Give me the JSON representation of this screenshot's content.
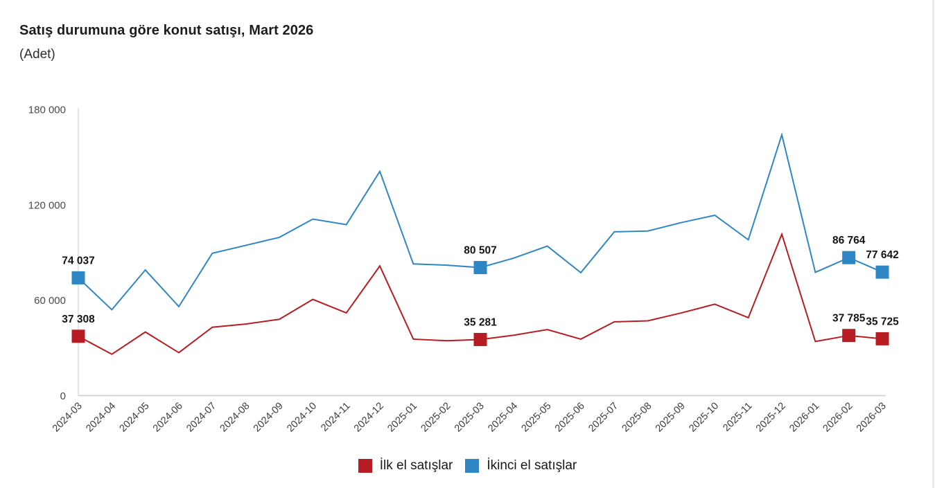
{
  "chart_data": {
    "type": "line",
    "title": "Satış durumuna göre konut satışı, Mart 2026",
    "subtitle": "(Adet)",
    "x": [
      "2024-03",
      "2024-04",
      "2024-05",
      "2024-06",
      "2024-07",
      "2024-08",
      "2024-09",
      "2024-10",
      "2024-11",
      "2024-12",
      "2025-01",
      "2025-02",
      "2025-03",
      "2025-04",
      "2025-05",
      "2025-06",
      "2025-07",
      "2025-08",
      "2025-09",
      "2025-10",
      "2025-11",
      "2025-12",
      "2026-01",
      "2026-02",
      "2026-03"
    ],
    "series": [
      {
        "name": "İlk el satışlar",
        "color": "#b71c22",
        "values": [
          37308,
          26000,
          40000,
          27000,
          43000,
          45000,
          48000,
          60500,
          52000,
          81500,
          35500,
          34500,
          35281,
          38000,
          41500,
          35500,
          46400,
          47000,
          52000,
          57500,
          49000,
          101500,
          34000,
          37785,
          35725
        ],
        "labeled_points": {
          "0": "37 308",
          "12": "35 281",
          "23": "37 785",
          "24": "35 725"
        }
      },
      {
        "name": "İkinci el satışlar",
        "color": "#2e86c5",
        "values": [
          74037,
          54000,
          79000,
          56000,
          89500,
          94500,
          99500,
          111000,
          107500,
          141000,
          82800,
          82000,
          80507,
          86500,
          94000,
          77300,
          103000,
          103500,
          108800,
          113400,
          98000,
          164000,
          77500,
          86764,
          77642
        ],
        "labeled_points": {
          "0": "74 037",
          "12": "80 507",
          "23": "86 764",
          "24": "77 642"
        }
      }
    ],
    "ylim": [
      0,
      180000
    ],
    "yticks": [
      {
        "value": 0,
        "label": "0"
      },
      {
        "value": 60000,
        "label": "60 000"
      },
      {
        "value": 120000,
        "label": "120 000"
      },
      {
        "value": 180000,
        "label": "180 000"
      }
    ],
    "grid": false,
    "legend_position": "bottom",
    "axis_color": "#cccccc",
    "tick_label_color": "#434343",
    "value_label_color": "#141414"
  }
}
